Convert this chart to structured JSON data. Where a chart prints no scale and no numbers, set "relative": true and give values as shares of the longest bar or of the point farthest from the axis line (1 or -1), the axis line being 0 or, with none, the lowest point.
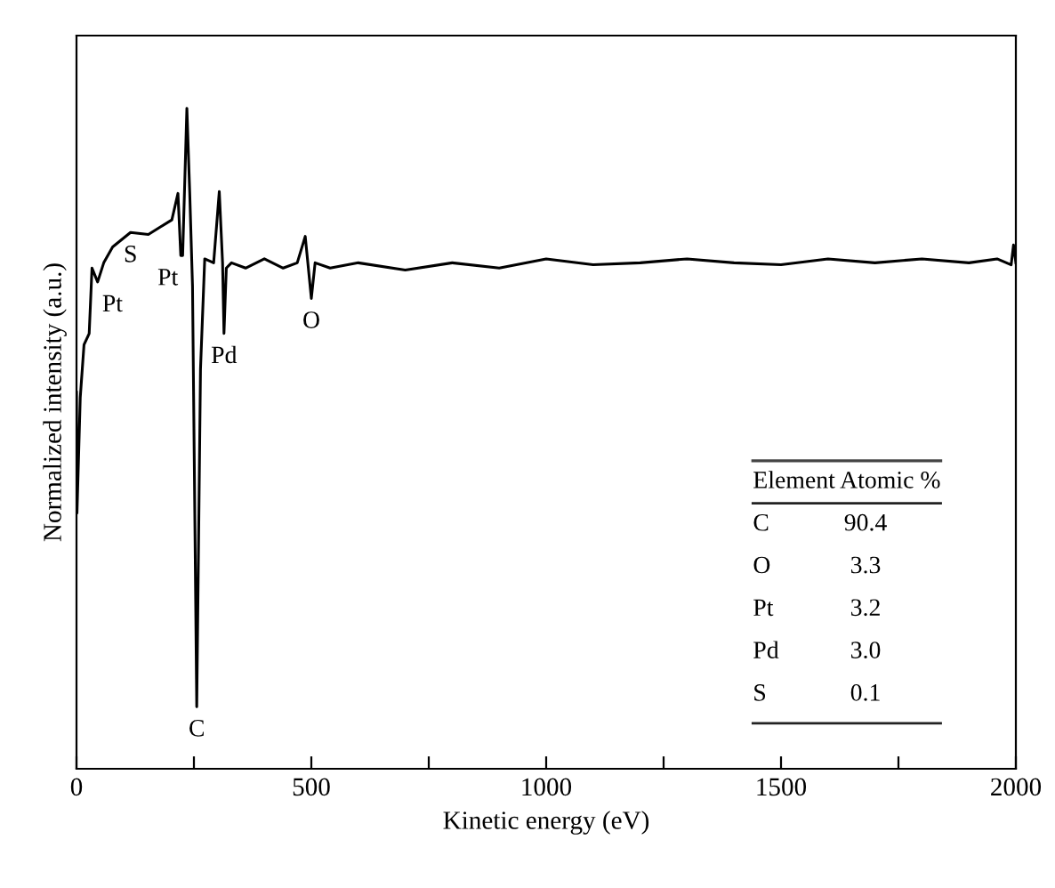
{
  "chart_data": {
    "type": "line",
    "xlabel": "Kinetic energy (eV)",
    "ylabel": "Normalized intensity (a.u.)",
    "relative": true,
    "xlim": [
      0,
      2000
    ],
    "xticks": [
      0,
      {
        "value": 250,
        "label": null
      },
      500,
      {
        "value": 750,
        "label": null
      },
      1000,
      {
        "value": 1250,
        "label": null
      },
      1500,
      {
        "value": 1750,
        "label": null
      },
      2000
    ],
    "tick_labels": "x",
    "grid": false,
    "legend": false,
    "series": [
      {
        "color": "#000000",
        "x": [
          0,
          1,
          8,
          16,
          27,
          33,
          45,
          58,
          77,
          115,
          153,
          178,
          203,
          216,
          222,
          226,
          235,
          241,
          247,
          256,
          264,
          273,
          292,
          304,
          311,
          314,
          319,
          330,
          360,
          400,
          440,
          470,
          487,
          500,
          508,
          540,
          600,
          700,
          800,
          900,
          1000,
          1100,
          1200,
          1300,
          1400,
          1500,
          1600,
          1700,
          1800,
          1900,
          1960,
          1990,
          1995,
          2000
        ],
        "values": [
          0.57,
          0.387,
          0.562,
          0.642,
          0.659,
          0.758,
          0.737,
          0.766,
          0.79,
          0.812,
          0.809,
          0.82,
          0.831,
          0.871,
          0.777,
          0.777,
          1,
          0.874,
          0.731,
          0.094,
          0.605,
          0.772,
          0.766,
          0.874,
          0.766,
          0.659,
          0.758,
          0.766,
          0.758,
          0.772,
          0.758,
          0.766,
          0.806,
          0.712,
          0.766,
          0.758,
          0.766,
          0.755,
          0.766,
          0.758,
          0.772,
          0.763,
          0.766,
          0.772,
          0.766,
          0.763,
          0.772,
          0.766,
          0.772,
          0.766,
          0.772,
          0.763,
          0.793,
          0.766
        ]
      }
    ],
    "annotations": [
      {
        "text": "Pt",
        "x": 45,
        "y": 0.737
      },
      {
        "text": "S",
        "x": 115,
        "y": 0.812
      },
      {
        "text": "Pt",
        "x": 226,
        "y": 0.777
      },
      {
        "text": "Pd",
        "x": 314,
        "y": 0.659
      },
      {
        "text": "O",
        "x": 500,
        "y": 0.712
      },
      {
        "text": "C",
        "x": 256,
        "y": 0.094
      },
      "Element",
      "Atomic %",
      "C",
      "90.4",
      "O",
      "3.3",
      "Pt",
      "3.2",
      "Pd",
      "3.0",
      "S",
      "0.1"
    ]
  }
}
